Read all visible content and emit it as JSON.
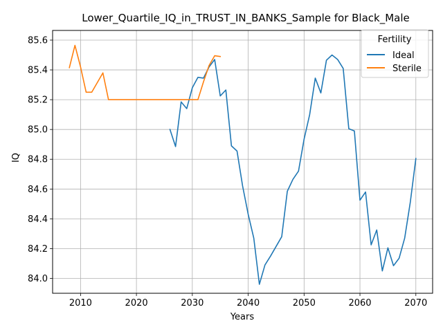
{
  "chart_data": {
    "type": "line",
    "title": "Lower_Quartile_IQ_in_TRUST_IN_BANKS_Sample for Black_Male",
    "xlabel": "Years",
    "ylabel": "IQ",
    "xlim": [
      2005,
      2073
    ],
    "ylim": [
      83.9,
      85.665
    ],
    "xticks": [
      2010,
      2020,
      2030,
      2040,
      2050,
      2060,
      2070
    ],
    "yticks": [
      84.0,
      84.2,
      84.4,
      84.6,
      84.8,
      85.0,
      85.2,
      85.4,
      85.6
    ],
    "ytick_labels": [
      "84.0",
      "84.2",
      "84.4",
      "84.6",
      "84.8",
      "85.0",
      "85.2",
      "85.4",
      "85.6"
    ],
    "grid": true,
    "legend": {
      "title": "Fertility",
      "placement": "top-right"
    },
    "series": [
      {
        "name": "Ideal",
        "color": "#1f77b4",
        "x": [
          2026,
          2027,
          2028,
          2029,
          2030,
          2031,
          2032,
          2033,
          2034,
          2035,
          2036,
          2037,
          2038,
          2039,
          2040,
          2041,
          2042,
          2043,
          2044,
          2045,
          2046,
          2047,
          2048,
          2049,
          2050,
          2051,
          2052,
          2053,
          2054,
          2055,
          2056,
          2057,
          2058,
          2059,
          2060,
          2061,
          2062,
          2063,
          2064,
          2065,
          2066,
          2067,
          2068,
          2069,
          2070
        ],
        "values": [
          85.0,
          84.885,
          85.185,
          85.14,
          85.28,
          85.35,
          85.345,
          85.42,
          85.47,
          85.225,
          85.265,
          84.89,
          84.855,
          84.62,
          84.43,
          84.27,
          83.96,
          84.09,
          84.15,
          84.215,
          84.28,
          84.585,
          84.665,
          84.72,
          84.935,
          85.1,
          85.345,
          85.245,
          85.465,
          85.5,
          85.47,
          85.41,
          85.005,
          84.99,
          84.525,
          84.58,
          84.225,
          84.325,
          84.05,
          84.205,
          84.085,
          84.135,
          84.27,
          84.51,
          84.805
        ]
      },
      {
        "name": "Sterile",
        "color": "#ff7f0e",
        "x": [
          2008,
          2009,
          2010,
          2011,
          2012,
          2013,
          2014,
          2015,
          2016,
          2017,
          2018,
          2019,
          2020,
          2021,
          2022,
          2023,
          2024,
          2025,
          2026,
          2027,
          2028,
          2029,
          2030,
          2031,
          2032,
          2033,
          2034,
          2035
        ],
        "values": [
          85.415,
          85.565,
          85.42,
          85.25,
          85.25,
          85.315,
          85.38,
          85.2,
          85.2,
          85.2,
          85.2,
          85.2,
          85.2,
          85.2,
          85.2,
          85.2,
          85.2,
          85.2,
          85.2,
          85.2,
          85.2,
          85.2,
          85.2,
          85.2,
          85.32,
          85.43,
          85.495,
          85.49
        ]
      }
    ]
  }
}
